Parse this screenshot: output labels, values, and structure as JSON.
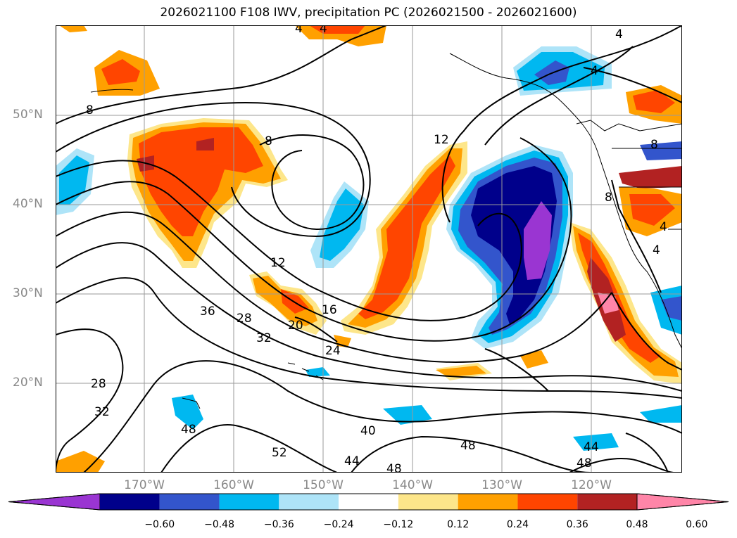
{
  "title": "2026021100 F108 IWV, precipitation PC (2026021500 - 2026021600)",
  "lat_labels": [
    "50°N",
    "40°N",
    "30°N",
    "20°N"
  ],
  "lon_labels": [
    "170°W",
    "160°W",
    "150°W",
    "140°W",
    "130°W",
    "120°W"
  ],
  "colorbar": {
    "colors": [
      "#9a35d2",
      "#00008b",
      "#3355cc",
      "#00b8f0",
      "#aee4f8",
      "#ffffff",
      "#fde68a",
      "#ffa000",
      "#ff4500",
      "#b22222",
      "#ff85a8"
    ],
    "tick_labels": [
      "−0.60",
      "−0.48",
      "−0.36",
      "−0.24",
      "−0.12",
      "0.12",
      "0.24",
      "0.36",
      "0.48",
      "0.60"
    ]
  },
  "contour_labels": [
    "4",
    "4",
    "4",
    "4",
    "8",
    "8",
    "8",
    "8",
    "4",
    "4",
    "12",
    "12",
    "16",
    "20",
    "24",
    "28",
    "32",
    "36",
    "28",
    "32",
    "40",
    "44",
    "48",
    "52",
    "48",
    "48",
    "44",
    "48"
  ],
  "colors": {
    "contour": "#000000",
    "grid": "#9a9a9a",
    "coast": "#000000"
  }
}
